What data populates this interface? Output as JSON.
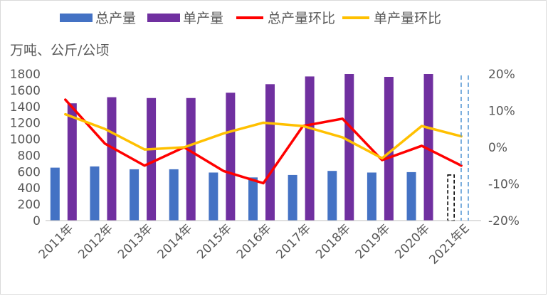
{
  "chart_data": {
    "type": "bar",
    "categories": [
      "2011年",
      "2012年",
      "2013年",
      "2014年",
      "2015年",
      "2016年",
      "2017年",
      "2018年",
      "2019年",
      "2020年",
      "2021年E"
    ],
    "series": [
      {
        "name": "总产量",
        "type": "bar",
        "axis": "left",
        "color": "#4472C4",
        "values": [
          650,
          665,
          630,
          630,
          590,
          530,
          560,
          610,
          590,
          595,
          560
        ],
        "forecast_last": true
      },
      {
        "name": "单产量",
        "type": "bar",
        "axis": "left",
        "color": "#7030A0",
        "values": [
          1440,
          1515,
          1505,
          1505,
          1570,
          1675,
          1770,
          1800,
          1765,
          1800,
          null
        ]
      },
      {
        "name": "总产量环比",
        "type": "line",
        "axis": "right",
        "color": "#FF0000",
        "values": [
          13.0,
          1.0,
          -5.0,
          0.0,
          -6.5,
          -9.8,
          5.8,
          7.8,
          -3.5,
          0.4,
          -5.0
        ]
      },
      {
        "name": "单产量环比",
        "type": "line",
        "axis": "right",
        "color": "#FFC000",
        "values": [
          9.0,
          5.0,
          -0.6,
          0.0,
          3.8,
          6.7,
          5.8,
          2.7,
          -3.0,
          5.8,
          3.0
        ]
      }
    ],
    "ylabel": "万吨、公斤/公顷",
    "ylim": [
      0,
      1800
    ],
    "y_ticks": [
      "0",
      "200",
      "400",
      "600",
      "800",
      "1000",
      "1200",
      "1400",
      "1600",
      "1800"
    ],
    "y2lim": [
      -20,
      20
    ],
    "y2_ticks": [
      "-20%",
      "-10%",
      "0%",
      "10%",
      "20%"
    ],
    "grid": false,
    "legend_position": "top"
  }
}
